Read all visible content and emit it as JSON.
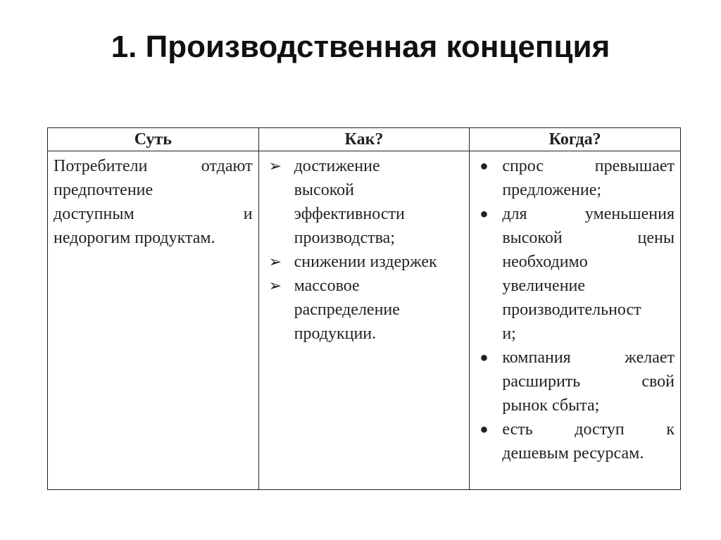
{
  "title": "1. Производственная концепция",
  "table": {
    "headers": [
      "Суть",
      "Как?",
      "Когда?"
    ],
    "essence": {
      "lines": [
        "Потребители отдают",
        "предпочтение",
        "доступным и",
        "недорогим продуктам."
      ]
    },
    "how": {
      "marker_icon": "arrow-bullet-icon",
      "items": [
        {
          "lines": [
            "достижение",
            "высокой",
            "эффективности",
            "производства;"
          ]
        },
        {
          "lines": [
            "снижении издержек"
          ]
        },
        {
          "lines": [
            "массовое",
            "распределение",
            "продукции."
          ]
        }
      ]
    },
    "when": {
      "marker_icon": "bullet-dot-icon",
      "items": [
        {
          "lines": [
            "спрос превышает",
            "предложение;"
          ]
        },
        {
          "lines": [
            "для уменьшения",
            "высокой цены",
            "необходимо",
            "увеличение",
            "производительност",
            "и;"
          ]
        },
        {
          "lines": [
            "компания желает",
            "расширить свой",
            "рынок сбыта;"
          ]
        },
        {
          "lines": [
            "есть доступ к",
            "дешевым ресурсам."
          ]
        }
      ]
    }
  }
}
